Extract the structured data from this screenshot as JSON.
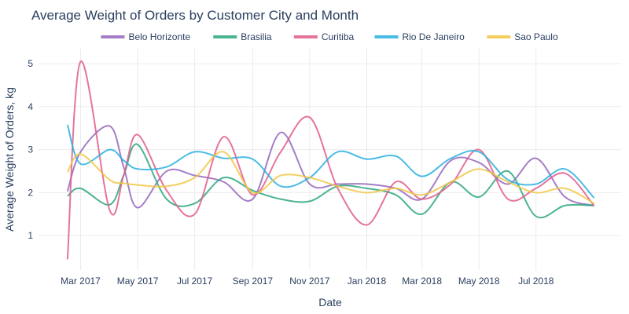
{
  "chart_data": {
    "type": "line",
    "title": "Average Weight of Orders by Customer City and Month",
    "xlabel": "Date",
    "ylabel": "Average Weight of Orders, kg",
    "x": [
      "2017-01",
      "2017-02",
      "2017-03",
      "2017-04",
      "2017-05",
      "2017-06",
      "2017-07",
      "2017-08",
      "2017-09",
      "2017-10",
      "2017-11",
      "2017-12",
      "2018-01",
      "2018-02",
      "2018-03",
      "2018-04",
      "2018-05",
      "2018-06",
      "2018-07",
      "2018-08",
      "2018-09"
    ],
    "x_ticks": [
      {
        "value": "2017-03",
        "label": "Mar 2017"
      },
      {
        "value": "2017-05",
        "label": "May 2017"
      },
      {
        "value": "2017-07",
        "label": "Jul 2017"
      },
      {
        "value": "2017-09",
        "label": "Sep 2017"
      },
      {
        "value": "2017-11",
        "label": "Nov 2017"
      },
      {
        "value": "2018-01",
        "label": "Jan 2018"
      },
      {
        "value": "2018-03",
        "label": "Mar 2018"
      },
      {
        "value": "2018-05",
        "label": "May 2018"
      },
      {
        "value": "2018-07",
        "label": "Jul 2018"
      }
    ],
    "x_range": [
      "2017-01-15",
      "2018-09-30"
    ],
    "y_ticks": [
      1,
      2,
      3,
      4,
      5
    ],
    "ylim": [
      0.2,
      5.35
    ],
    "legend_position": "top",
    "grid": true,
    "series": [
      {
        "name": "Belo Horizonte",
        "color": "#9467bd",
        "x": [
          "2017-02-15",
          "2017-03-01",
          "2017-04-01",
          "2017-04-16",
          "2017-05-01",
          "2017-06-01",
          "2017-07-01",
          "2017-08-01",
          "2017-09-01",
          "2017-10-01",
          "2017-11-01",
          "2017-12-01",
          "2018-01-01",
          "2018-02-01",
          "2018-03-01",
          "2018-04-01",
          "2018-05-01",
          "2018-06-01",
          "2018-07-01",
          "2018-08-01",
          "2018-09-01"
        ],
        "values": [
          2.03,
          2.95,
          3.55,
          2.6,
          1.65,
          2.5,
          2.4,
          2.25,
          1.85,
          3.4,
          2.2,
          2.2,
          2.2,
          2.1,
          1.85,
          2.75,
          2.7,
          2.2,
          2.8,
          1.9,
          1.7
        ]
      },
      {
        "name": "Brasilia",
        "color": "#2ca77e",
        "x": [
          "2017-02-15",
          "2017-03-01",
          "2017-04-01",
          "2017-04-16",
          "2017-05-01",
          "2017-06-01",
          "2017-07-01",
          "2017-08-01",
          "2017-09-01",
          "2017-10-01",
          "2017-11-01",
          "2017-12-01",
          "2018-01-01",
          "2018-02-01",
          "2018-03-01",
          "2018-04-01",
          "2018-05-01",
          "2018-06-01",
          "2018-07-01",
          "2018-08-01",
          "2018-09-01"
        ],
        "values": [
          1.92,
          2.1,
          1.72,
          2.4,
          3.12,
          1.85,
          1.75,
          2.35,
          2.05,
          1.85,
          1.8,
          2.15,
          2.1,
          1.95,
          1.5,
          2.25,
          1.9,
          2.5,
          1.45,
          1.7,
          1.7
        ]
      },
      {
        "name": "Curitiba",
        "color": "#e05c8c",
        "x": [
          "2017-02-15",
          "2017-03-01",
          "2017-04-01",
          "2017-04-16",
          "2017-05-01",
          "2017-06-01",
          "2017-07-01",
          "2017-08-01",
          "2017-09-01",
          "2017-10-01",
          "2017-11-01",
          "2017-12-01",
          "2018-01-01",
          "2018-02-01",
          "2018-03-01",
          "2018-04-01",
          "2018-05-01",
          "2018-06-01",
          "2018-07-01",
          "2018-08-01",
          "2018-09-01"
        ],
        "values": [
          0.45,
          5.05,
          1.6,
          2.4,
          3.35,
          2.05,
          1.5,
          3.3,
          1.95,
          2.95,
          3.75,
          2.1,
          1.25,
          2.25,
          1.85,
          2.2,
          3.0,
          1.85,
          2.1,
          2.45,
          1.7
        ]
      },
      {
        "name": "Rio De Janeiro",
        "color": "#2ab0e0",
        "x": [
          "2017-02-15",
          "2017-03-01",
          "2017-04-01",
          "2017-04-16",
          "2017-05-01",
          "2017-06-01",
          "2017-07-01",
          "2017-08-01",
          "2017-09-01",
          "2017-10-01",
          "2017-11-01",
          "2017-12-01",
          "2018-01-01",
          "2018-02-01",
          "2018-03-01",
          "2018-04-01",
          "2018-05-01",
          "2018-06-01",
          "2018-07-01",
          "2018-08-01",
          "2018-09-01"
        ],
        "values": [
          3.58,
          2.67,
          3.0,
          2.75,
          2.55,
          2.6,
          2.95,
          2.8,
          2.78,
          2.15,
          2.35,
          2.95,
          2.78,
          2.85,
          2.38,
          2.8,
          2.95,
          2.3,
          2.2,
          2.55,
          1.88
        ]
      },
      {
        "name": "Sao Paulo",
        "color": "#f2c744",
        "x": [
          "2017-02-15",
          "2017-03-01",
          "2017-04-01",
          "2017-04-16",
          "2017-05-01",
          "2017-06-01",
          "2017-07-01",
          "2017-08-01",
          "2017-09-01",
          "2017-10-01",
          "2017-11-01",
          "2017-12-01",
          "2018-01-01",
          "2018-02-01",
          "2018-03-01",
          "2018-04-01",
          "2018-05-01",
          "2018-06-01",
          "2018-07-01",
          "2018-08-01",
          "2018-09-01"
        ],
        "values": [
          2.48,
          2.9,
          2.3,
          2.22,
          2.18,
          2.15,
          2.35,
          2.95,
          2.0,
          2.4,
          2.35,
          2.15,
          2.0,
          2.1,
          1.95,
          2.25,
          2.55,
          2.25,
          2.0,
          2.1,
          1.75
        ]
      }
    ]
  }
}
